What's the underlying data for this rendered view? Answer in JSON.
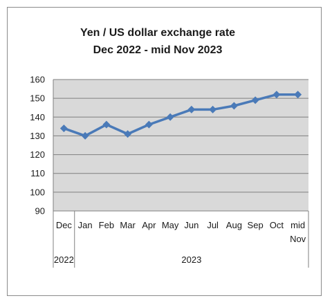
{
  "chart_data": {
    "type": "line",
    "title_lines": [
      "Yen / US dollar exchange rate",
      "Dec 2022 - mid Nov 2023"
    ],
    "categories": [
      [
        "Dec"
      ],
      [
        "Jan"
      ],
      [
        "Feb"
      ],
      [
        "Mar"
      ],
      [
        "Apr"
      ],
      [
        "May"
      ],
      [
        "Jun"
      ],
      [
        "Jul"
      ],
      [
        "Aug"
      ],
      [
        "Sep"
      ],
      [
        "Oct"
      ],
      [
        "mid",
        "Nov"
      ]
    ],
    "groups": [
      {
        "label": "2022",
        "count": 1
      },
      {
        "label": "2023",
        "count": 11
      }
    ],
    "series": [
      {
        "values": [
          134,
          130,
          136,
          131,
          136,
          140,
          144,
          144,
          146,
          149,
          152,
          152
        ]
      }
    ],
    "ylim": [
      90,
      160
    ],
    "yticks": [
      90,
      100,
      110,
      120,
      130,
      140,
      150,
      160
    ],
    "grid": true,
    "legend": "none",
    "colors": {
      "line": "#4a7ab8",
      "marker": "#4a7ab8",
      "plot_bg": "#d9d9d9",
      "gridline": "#7f7f7f",
      "frame": "#8a8a8a"
    },
    "marker": "diamond"
  }
}
